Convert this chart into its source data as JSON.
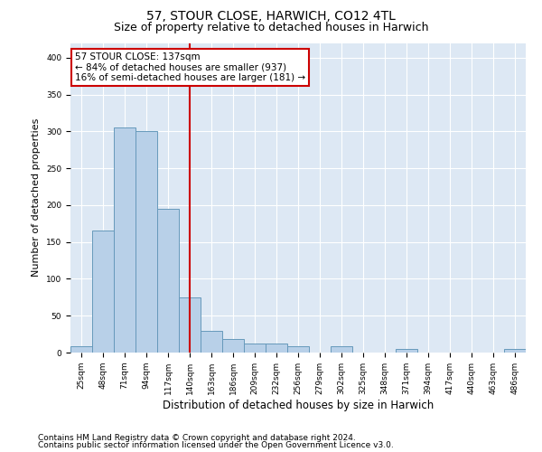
{
  "title": "57, STOUR CLOSE, HARWICH, CO12 4TL",
  "subtitle": "Size of property relative to detached houses in Harwich",
  "xlabel": "Distribution of detached houses by size in Harwich",
  "ylabel": "Number of detached properties",
  "categories": [
    "25sqm",
    "48sqm",
    "71sqm",
    "94sqm",
    "117sqm",
    "140sqm",
    "163sqm",
    "186sqm",
    "209sqm",
    "232sqm",
    "256sqm",
    "279sqm",
    "302sqm",
    "325sqm",
    "348sqm",
    "371sqm",
    "394sqm",
    "417sqm",
    "440sqm",
    "463sqm",
    "486sqm"
  ],
  "values": [
    8,
    165,
    305,
    300,
    195,
    75,
    30,
    18,
    12,
    12,
    8,
    0,
    8,
    0,
    0,
    5,
    0,
    0,
    0,
    0,
    5
  ],
  "bar_color": "#b8d0e8",
  "bar_edge_color": "#6699bb",
  "vline_x_index": 5,
  "vline_color": "#cc0000",
  "annotation_line1": "57 STOUR CLOSE: 137sqm",
  "annotation_line2": "← 84% of detached houses are smaller (937)",
  "annotation_line3": "16% of semi-detached houses are larger (181) →",
  "annotation_box_color": "#ffffff",
  "annotation_box_edge_color": "#cc0000",
  "ylim": [
    0,
    420
  ],
  "yticks": [
    0,
    50,
    100,
    150,
    200,
    250,
    300,
    350,
    400
  ],
  "bg_color": "#dde8f4",
  "grid_color": "#ffffff",
  "footer_line1": "Contains HM Land Registry data © Crown copyright and database right 2024.",
  "footer_line2": "Contains public sector information licensed under the Open Government Licence v3.0.",
  "title_fontsize": 10,
  "subtitle_fontsize": 9,
  "xlabel_fontsize": 8.5,
  "ylabel_fontsize": 8,
  "tick_fontsize": 6.5,
  "annotation_fontsize": 7.5,
  "footer_fontsize": 6.5
}
